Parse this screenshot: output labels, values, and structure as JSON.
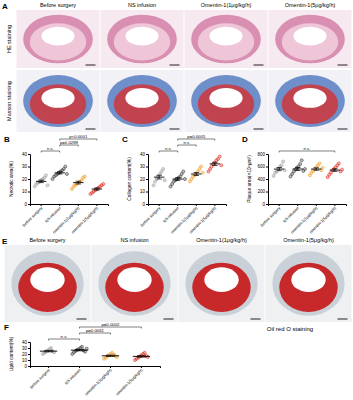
{
  "image_panels": [
    {
      "label": "A",
      "columns": [
        "Before surgery",
        "NS infusion",
        "Omentin-1(1μg/kg/h)",
        "Omentin-1(5μg/kg/h)"
      ],
      "rows": [
        "HE staining",
        "Masson staining"
      ]
    },
    {
      "label": "E",
      "columns": [
        "Before surgery",
        "NS infusion",
        "Omentin-1(1μg/kg/h)",
        "Omentin-1(5μg/kg/h)"
      ],
      "caption": "Oil red O staining"
    }
  ],
  "chart_data": [
    {
      "label": "B",
      "type": "scatter",
      "y_label": "Necrotic area(%)",
      "marker": "circle",
      "categories": [
        "Before surgery",
        "NS infusion",
        "omentin-1(1μg/kg/h)",
        "omentin-1(5μg/kg/h)"
      ],
      "colors": [
        "#9e9e9e",
        "#444444",
        "#f0a030",
        "#e0382c"
      ],
      "points": [
        [
          14,
          16,
          17,
          18,
          19,
          20,
          21,
          23,
          15
        ],
        [
          20,
          22,
          23,
          24,
          25,
          26,
          27,
          28,
          30,
          24
        ],
        [
          12,
          14,
          15,
          16,
          17,
          18,
          19,
          21,
          22
        ],
        [
          8,
          9,
          10,
          11,
          12,
          13,
          14,
          15,
          16
        ]
      ],
      "means": [
        18.1,
        24.9,
        17.1,
        12
      ],
      "errors": [
        1,
        0.9,
        1.1,
        0.9
      ],
      "ylim": [
        0,
        40
      ],
      "yticks": [
        0,
        10,
        20,
        30,
        40
      ],
      "annotations": [
        {
          "text": "n.s.",
          "from": 0,
          "to": 1
        },
        {
          "text": "p=0.0289",
          "from": 1,
          "to": 2
        },
        {
          "text": "p<0.0001",
          "from": 1,
          "to": 3
        }
      ]
    },
    {
      "label": "C",
      "type": "scatter",
      "y_label": "Collagen content(%)",
      "marker": "circle",
      "categories": [
        "Before surgery",
        "NS infusion",
        "omentin-1(1μg/kg/h)",
        "omentin-1(5μg/kg/h)"
      ],
      "colors": [
        "#9e9e9e",
        "#444444",
        "#f0a030",
        "#e0382c"
      ],
      "points": [
        [
          15,
          18,
          20,
          22,
          24,
          26,
          28,
          19
        ],
        [
          14,
          16,
          18,
          19,
          20,
          21,
          22,
          24,
          26,
          20
        ],
        [
          18,
          20,
          22,
          23,
          24,
          26,
          28,
          30,
          25
        ],
        [
          26,
          28,
          30,
          32,
          33,
          35,
          36,
          38,
          31
        ]
      ],
      "means": [
        21.5,
        20,
        24,
        32.1
      ],
      "errors": [
        1.5,
        1.1,
        1.2,
        1.3
      ],
      "ylim": [
        0,
        40
      ],
      "yticks": [
        0,
        10,
        20,
        30,
        40
      ],
      "annotations": [
        {
          "text": "n.s.",
          "from": 0,
          "to": 1
        },
        {
          "text": "n.s.",
          "from": 1,
          "to": 2
        },
        {
          "text": "p=0.0005",
          "from": 1,
          "to": 3
        }
      ]
    },
    {
      "label": "D",
      "type": "scatter",
      "y_label": "Plaque area(×10⁴μm²)",
      "marker": "circle",
      "categories": [
        "Before surgery",
        "NS infusion",
        "omentin-1(1μg/kg/h)",
        "omentin-1(5μg/kg/h)"
      ],
      "colors": [
        "#9e9e9e",
        "#444444",
        "#f0a030",
        "#e0382c"
      ],
      "points": [
        [
          450,
          500,
          520,
          560,
          600,
          620,
          680,
          540
        ],
        [
          440,
          480,
          520,
          550,
          580,
          600,
          640,
          700,
          530,
          560
        ],
        [
          460,
          500,
          530,
          560,
          590,
          620,
          650,
          540,
          580
        ],
        [
          430,
          470,
          500,
          540,
          560,
          590,
          620,
          650,
          520,
          550
        ]
      ],
      "means": [
        558.75,
        560,
        558.9,
        543
      ],
      "errors": [
        25,
        24,
        20,
        21
      ],
      "ylim": [
        0,
        800
      ],
      "yticks": [
        0,
        200,
        400,
        600,
        800
      ],
      "annotations": [
        {
          "text": "n.s.",
          "from": 0,
          "to": 3
        }
      ]
    },
    {
      "label": "F",
      "type": "scatter",
      "y_label": "Lipid content(%)",
      "marker": "circle",
      "categories": [
        "Before surgery",
        "NS infusion",
        "omentin-1(1μg/kg/h)",
        "omentin-1(5μg/kg/h)"
      ],
      "colors": [
        "#9e9e9e",
        "#444444",
        "#f0a030",
        "#e0382c"
      ],
      "points": [
        [
          20,
          22,
          24,
          26,
          28,
          30,
          25,
          23
        ],
        [
          20,
          23,
          25,
          27,
          28,
          30,
          32,
          26,
          24,
          29
        ],
        [
          12,
          14,
          16,
          18,
          20,
          22,
          19,
          17,
          15
        ],
        [
          10,
          12,
          14,
          16,
          18,
          20,
          22,
          17,
          15
        ]
      ],
      "means": [
        24.75,
        26.4,
        17,
        16
      ],
      "errors": [
        1.2,
        1.1,
        1.1,
        1.3
      ],
      "ylim": [
        0,
        40
      ],
      "yticks": [
        0,
        10,
        20,
        30,
        40
      ],
      "annotations": [
        {
          "text": "n.s.",
          "from": 0,
          "to": 1
        },
        {
          "text": "p=0.0061",
          "from": 1,
          "to": 2
        },
        {
          "text": "p=0.0002",
          "from": 1,
          "to": 3
        }
      ]
    }
  ]
}
